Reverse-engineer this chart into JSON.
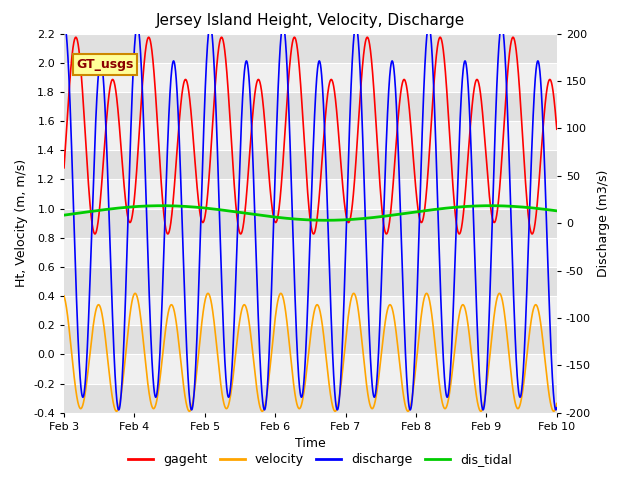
{
  "title": "Jersey Island Height, Velocity, Discharge",
  "xlabel": "Time",
  "ylabel_left": "Ht, Velocity (m, m/s)",
  "ylabel_right": "Discharge (m3/s)",
  "ylim_left": [
    -0.4,
    2.2
  ],
  "ylim_right": [
    -200,
    200
  ],
  "yticks_left": [
    -0.4,
    -0.2,
    0.0,
    0.2,
    0.4,
    0.6,
    0.8,
    1.0,
    1.2,
    1.4,
    1.6,
    1.8,
    2.0,
    2.2
  ],
  "yticks_right": [
    -200,
    -150,
    -100,
    -50,
    0,
    50,
    100,
    150,
    200
  ],
  "xtick_labels": [
    "Feb 3",
    "Feb 4",
    "Feb 5",
    "Feb 6",
    "Feb 7",
    "Feb 8",
    "Feb 9",
    "Feb 10"
  ],
  "colors": {
    "gageht": "#ff0000",
    "velocity": "#ffa500",
    "discharge": "#0000ff",
    "dis_tidal": "#00cc00"
  },
  "legend_label": "GT_usgs",
  "legend_box_facecolor": "#ffff99",
  "legend_box_edgecolor": "#cc8800",
  "background_color": "#ffffff",
  "plot_bg_color": "#ffffff",
  "grid_color": "#cccccc",
  "band_color_dark": "#e0e0e0",
  "band_color_light": "#f0f0f0"
}
